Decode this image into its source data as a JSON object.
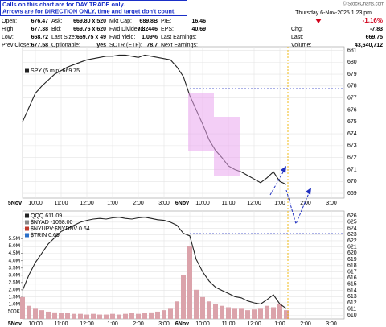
{
  "header": {
    "note": [
      "Calls on this chart are for DAY TRADE only.",
      "Arrows are for DIRECTION ONLY, time and target don't count."
    ],
    "copyright": "© StockCharts.com",
    "date": "Thursday 6-Nov-2025 1:23 pm",
    "change_pct": "-1.16%",
    "quote": [
      [
        {
          "label": "Open:",
          "value": "676.47"
        },
        {
          "label": "High:",
          "value": "677.38"
        },
        {
          "label": "Low:",
          "value": "668.72"
        },
        {
          "label": "Prev Close:",
          "value": "677.58"
        }
      ],
      [
        {
          "label": "Ask:",
          "value": "669.80 x 520"
        },
        {
          "label": "Bid:",
          "value": "669.76 x 620"
        },
        {
          "label": "Last Size:",
          "value": "669.75 x 49"
        },
        {
          "label": "Optionable:",
          "value": "yes"
        }
      ],
      [
        {
          "label": "Mkt Cap:",
          "value": "689.8B"
        },
        {
          "label": "Fwd Dividend:",
          "value": "7.32446"
        },
        {
          "label": "Fwd Yield:",
          "value": "1.09%"
        },
        {
          "label": "SCTR (ETF):",
          "value": "78.7"
        }
      ],
      [
        {
          "label": "P/E:",
          "value": "16.46"
        },
        {
          "label": "EPS:",
          "value": "40.69"
        },
        {
          "label": "Last Earnings:"
        },
        {
          "label": "Next Earnings:"
        }
      ],
      [
        {
          "label": "Chg:",
          "value": "-7.83"
        },
        {
          "label": "Last:",
          "value": "669.75"
        },
        {
          "label": "Volume:",
          "value": "43,640,712"
        }
      ]
    ]
  },
  "chart_data": [
    {
      "type": "line",
      "legend": [
        "SPY (5 min) 669.75"
      ],
      "x": [
        0,
        3,
        6,
        9,
        12,
        15,
        18,
        21,
        24,
        27,
        30,
        33,
        36,
        39,
        42,
        45,
        48,
        51,
        54,
        57,
        60,
        63,
        66,
        69,
        72,
        75,
        78,
        81,
        84,
        87,
        90,
        93,
        96,
        99,
        102,
        105,
        108,
        111,
        114,
        117,
        120,
        123
      ],
      "series": [
        {
          "color": "#222222",
          "values": [
            675.0,
            676.2,
            677.4,
            678.0,
            678.5,
            679.0,
            679.3,
            679.6,
            679.8,
            680.0,
            680.2,
            680.3,
            680.4,
            680.5,
            680.5,
            680.6,
            680.6,
            680.5,
            680.4,
            680.6,
            680.5,
            680.4,
            680.3,
            680.2,
            679.6,
            678.8,
            677.2,
            676.0,
            674.8,
            673.5,
            672.6,
            672.0,
            671.3,
            671.0,
            670.8,
            670.5,
            670.2,
            669.9,
            670.3,
            670.8,
            670.0,
            669.75
          ]
        }
      ],
      "xlim": [
        0,
        150
      ],
      "xticks": [
        {
          "value": 0,
          "label": "5Nov"
        },
        {
          "value": 6,
          "label": "10:00"
        },
        {
          "value": 18,
          "label": "11:00"
        },
        {
          "value": 30,
          "label": "12:00"
        },
        {
          "value": 42,
          "label": "1:00"
        },
        {
          "value": 54,
          "label": "2:00"
        },
        {
          "value": 66,
          "label": "3:00"
        },
        {
          "value": 78,
          "label": "6Nov"
        },
        {
          "value": 84,
          "label": "10:00"
        },
        {
          "value": 96,
          "label": "11:00"
        },
        {
          "value": 108,
          "label": "12:00"
        },
        {
          "value": 120,
          "label": "1:00"
        },
        {
          "value": 132,
          "label": "2:00"
        },
        {
          "value": 144,
          "label": "3:00"
        }
      ],
      "ylim": [
        668.6,
        681.3
      ],
      "yticks": [
        669,
        670,
        671,
        672,
        673,
        674,
        675,
        676,
        677,
        678,
        679,
        680,
        681
      ],
      "grid": true
    },
    {
      "type": "line",
      "legend": [
        "QQQ 611.09",
        "$NYAD -1058.00",
        "$NYUPV:$NYDNV 0.64",
        "$TRIN 0.69"
      ],
      "x": [
        0,
        3,
        6,
        9,
        12,
        15,
        18,
        21,
        24,
        27,
        30,
        33,
        36,
        39,
        42,
        45,
        48,
        51,
        54,
        57,
        60,
        63,
        66,
        69,
        72,
        75,
        78,
        81,
        84,
        87,
        90,
        93,
        96,
        99,
        102,
        105,
        108,
        111,
        114,
        117,
        120,
        123
      ],
      "series": [
        {
          "color": "#222222",
          "values": [
            614.0,
            616.5,
            618.5,
            620.0,
            621.5,
            622.5,
            623.5,
            624.0,
            624.5,
            625.0,
            625.3,
            625.5,
            625.6,
            625.5,
            625.7,
            625.8,
            625.6,
            625.5,
            625.7,
            625.8,
            625.6,
            625.4,
            625.3,
            625.0,
            624.5,
            623.2,
            622.8,
            619.0,
            617.0,
            615.5,
            614.5,
            614.0,
            613.5,
            613.0,
            612.8,
            612.3,
            612.0,
            611.8,
            612.5,
            613.3,
            611.8,
            611.09
          ]
        },
        {
          "type": "bar",
          "axis": "y2",
          "color": "#dba3ab",
          "values": [
            1500000,
            900000,
            700000,
            600000,
            500000,
            450000,
            400000,
            400000,
            350000,
            350000,
            300000,
            350000,
            300000,
            300000,
            350000,
            300000,
            350000,
            400000,
            350000,
            400000,
            450000,
            500000,
            600000,
            700000,
            1200000,
            3000000,
            5000000,
            2000000,
            1500000,
            1200000,
            1000000,
            900000,
            800000,
            700000,
            700000,
            600000,
            650000,
            700000,
            900000,
            800000,
            1000000,
            600000
          ]
        }
      ],
      "xlim": [
        0,
        150
      ],
      "xticks": [
        {
          "value": 0,
          "label": "5Nov"
        },
        {
          "value": 6,
          "label": "10:00"
        },
        {
          "value": 18,
          "label": "11:00"
        },
        {
          "value": 30,
          "label": "12:00"
        },
        {
          "value": 42,
          "label": "1:00"
        },
        {
          "value": 54,
          "label": "2:00"
        },
        {
          "value": 66,
          "label": "3:00"
        },
        {
          "value": 78,
          "label": "6Nov"
        },
        {
          "value": 84,
          "label": "10:00"
        },
        {
          "value": 96,
          "label": "11:00"
        },
        {
          "value": 108,
          "label": "12:00"
        },
        {
          "value": 120,
          "label": "1:00"
        },
        {
          "value": 132,
          "label": "2:00"
        },
        {
          "value": 144,
          "label": "3:00"
        }
      ],
      "ylim": [
        609.4,
        626.8
      ],
      "yticks": [
        610,
        611,
        612,
        613,
        614,
        615,
        616,
        617,
        618,
        619,
        620,
        621,
        622,
        623,
        624,
        625,
        626
      ],
      "y2lim": [
        0,
        7400000
      ],
      "y2ticks": [
        {
          "value": 500000,
          "label": "500K"
        },
        {
          "value": 1000000,
          "label": "1.0M"
        },
        {
          "value": 1500000,
          "label": "1.5M"
        },
        {
          "value": 2000000,
          "label": "2.0M"
        },
        {
          "value": 2500000,
          "label": "2.5M"
        },
        {
          "value": 3000000,
          "label": "3.0M"
        },
        {
          "value": 3500000,
          "label": "3.5M"
        },
        {
          "value": 4000000,
          "label": "4.0M"
        },
        {
          "value": 4500000,
          "label": "4.5M"
        },
        {
          "value": 5000000,
          "label": "5.0M"
        },
        {
          "value": 5500000,
          "label": "5.5M"
        }
      ],
      "grid": true
    }
  ]
}
